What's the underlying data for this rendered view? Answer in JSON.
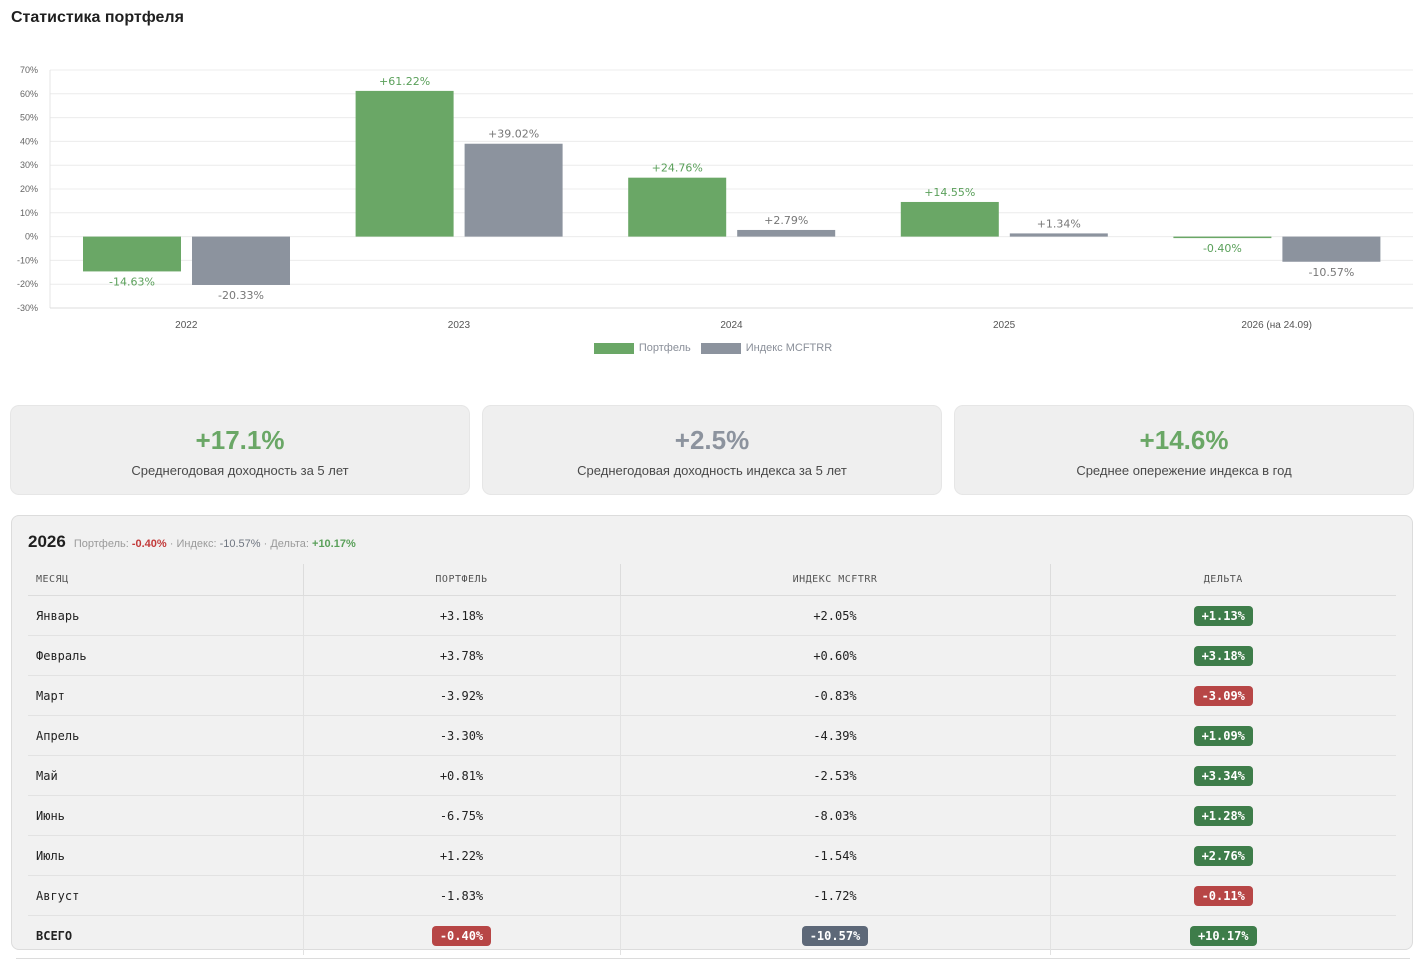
{
  "page": {
    "title": "Статистика портфеля"
  },
  "colors": {
    "portfolio": "#6aa766",
    "index": "#8c939e",
    "positive": "#3e7d4a",
    "negative": "#b74646",
    "neutral": "#5d6878"
  },
  "chart_data": {
    "type": "bar",
    "categories": [
      "2022",
      "2023",
      "2024",
      "2025",
      "2026 (на 24.09)"
    ],
    "series": [
      {
        "name": "Портфель",
        "values": [
          -14.63,
          61.22,
          24.76,
          14.55,
          -0.4
        ],
        "labels": [
          "-14.63%",
          "+61.22%",
          "+24.76%",
          "+14.55%",
          "-0.40%"
        ]
      },
      {
        "name": "Индекс MCFTRR",
        "values": [
          -20.33,
          39.02,
          2.79,
          1.34,
          -10.57
        ],
        "labels": [
          "-20.33%",
          "+39.02%",
          "+2.79%",
          "+1.34%",
          "-10.57%"
        ]
      }
    ],
    "y_ticks": [
      "70%",
      "60%",
      "50%",
      "40%",
      "30%",
      "20%",
      "10%",
      "0%",
      "-10%",
      "-20%",
      "-30%"
    ],
    "ylim": [
      -30,
      70
    ],
    "grid": true,
    "legend_position": "bottom-center"
  },
  "stats": [
    {
      "value": "+17.1%",
      "label": "Среднегодовая доходность за 5 лет",
      "color": "#6aa766"
    },
    {
      "value": "+2.5%",
      "label": "Среднегодовая доходность индекса за 5 лет",
      "color": "#8c939e"
    },
    {
      "value": "+14.6%",
      "label": "Среднее опережение индекса в год",
      "color": "#6aa766"
    }
  ],
  "year_panel": {
    "year": "2026",
    "summary": {
      "portfolio_label": "Портфель:",
      "portfolio_value": "-0.40%",
      "sep1": "·",
      "index_label": "Индекс:",
      "index_value": "-10.57%",
      "sep2": "·",
      "delta_label": "Дельта:",
      "delta_value": "+10.17%"
    },
    "columns": [
      "МЕСЯЦ",
      "ПОРТФЕЛЬ",
      "ИНДЕКС MCFTRR",
      "ДЕЛЬТА"
    ],
    "rows": [
      {
        "month": "Январь",
        "portfolio": "+3.18%",
        "index": "+2.05%",
        "delta": "+1.13%",
        "delta_sign": "pos"
      },
      {
        "month": "Февраль",
        "portfolio": "+3.78%",
        "index": "+0.60%",
        "delta": "+3.18%",
        "delta_sign": "pos"
      },
      {
        "month": "Март",
        "portfolio": "-3.92%",
        "index": "-0.83%",
        "delta": "-3.09%",
        "delta_sign": "neg"
      },
      {
        "month": "Апрель",
        "portfolio": "-3.30%",
        "index": "-4.39%",
        "delta": "+1.09%",
        "delta_sign": "pos"
      },
      {
        "month": "Май",
        "portfolio": "+0.81%",
        "index": "-2.53%",
        "delta": "+3.34%",
        "delta_sign": "pos"
      },
      {
        "month": "Июнь",
        "portfolio": "-6.75%",
        "index": "-8.03%",
        "delta": "+1.28%",
        "delta_sign": "pos"
      },
      {
        "month": "Июль",
        "portfolio": "+1.22%",
        "index": "-1.54%",
        "delta": "+2.76%",
        "delta_sign": "pos"
      },
      {
        "month": "Август",
        "portfolio": "-1.83%",
        "index": "-1.72%",
        "delta": "-0.11%",
        "delta_sign": "neg"
      }
    ],
    "total": {
      "label": "ВСЕГО",
      "portfolio": "-0.40%",
      "index": "-10.57%",
      "delta": "+10.17%"
    }
  }
}
